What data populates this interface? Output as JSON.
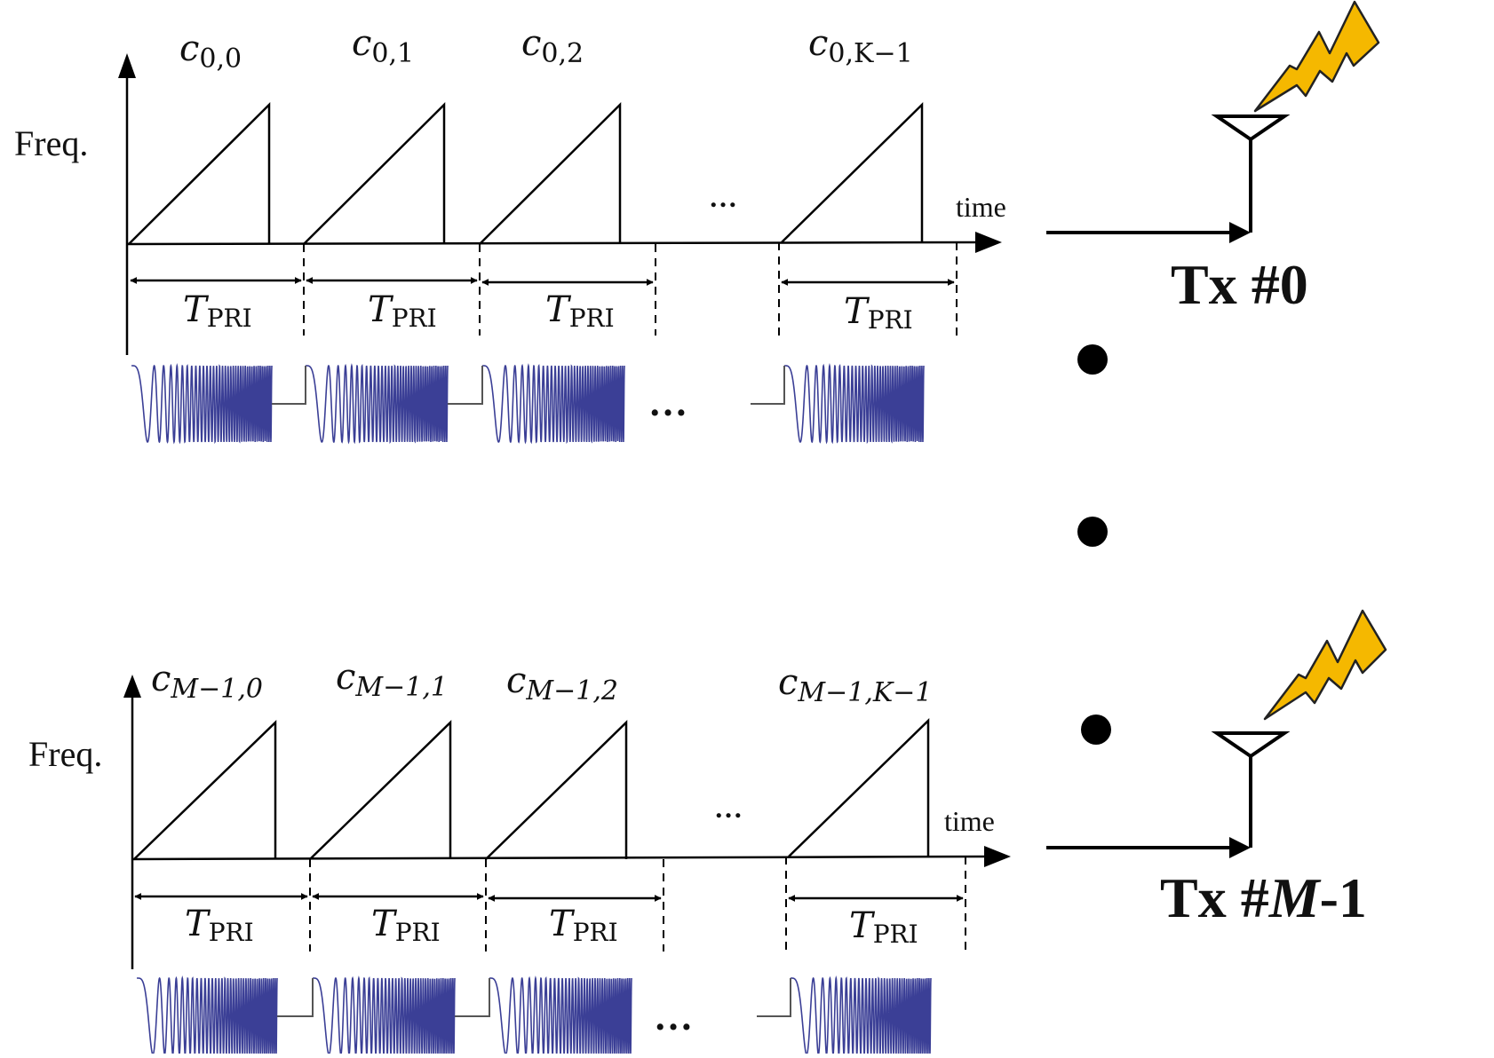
{
  "diagram": {
    "colors": {
      "line": "#000000",
      "waveform": "#3b3f96",
      "lightning_fill": "#f5b800",
      "lightning_stroke": "#222222"
    },
    "panels": [
      {
        "id": "tx0",
        "freq_label": "Freq.",
        "time_label": "time",
        "gap_ellipsis": "…",
        "wave_ellipsis": "…",
        "chirp_codes": [
          {
            "base": "c",
            "sub": "0,0"
          },
          {
            "base": "c",
            "sub": "0,1"
          },
          {
            "base": "c",
            "sub": "0,2"
          },
          {
            "base": "c",
            "sub": "0,K−1"
          }
        ],
        "period_labels": [
          {
            "base": "T",
            "sub": "PRI"
          },
          {
            "base": "T",
            "sub": "PRI"
          },
          {
            "base": "T",
            "sub": "PRI"
          },
          {
            "base": "T",
            "sub": "PRI"
          }
        ],
        "tx_label": {
          "prefix": "Tx #",
          "index": "0",
          "suffix": ""
        }
      },
      {
        "id": "txM1",
        "freq_label": "Freq.",
        "time_label": "time",
        "gap_ellipsis": "…",
        "wave_ellipsis": "…",
        "chirp_codes": [
          {
            "base": "c",
            "sub": "M−1,0"
          },
          {
            "base": "c",
            "sub": "M−1,1"
          },
          {
            "base": "c",
            "sub": "M−1,2"
          },
          {
            "base": "c",
            "sub": "M−1,K−1"
          }
        ],
        "period_labels": [
          {
            "base": "T",
            "sub": "PRI"
          },
          {
            "base": "T",
            "sub": "PRI"
          },
          {
            "base": "T",
            "sub": "PRI"
          },
          {
            "base": "T",
            "sub": "PRI"
          }
        ],
        "tx_label": {
          "prefix": "Tx #",
          "index": "M",
          "suffix": "-1"
        }
      }
    ],
    "vertical_dots_icon": "vertical-ellipsis-icon"
  }
}
